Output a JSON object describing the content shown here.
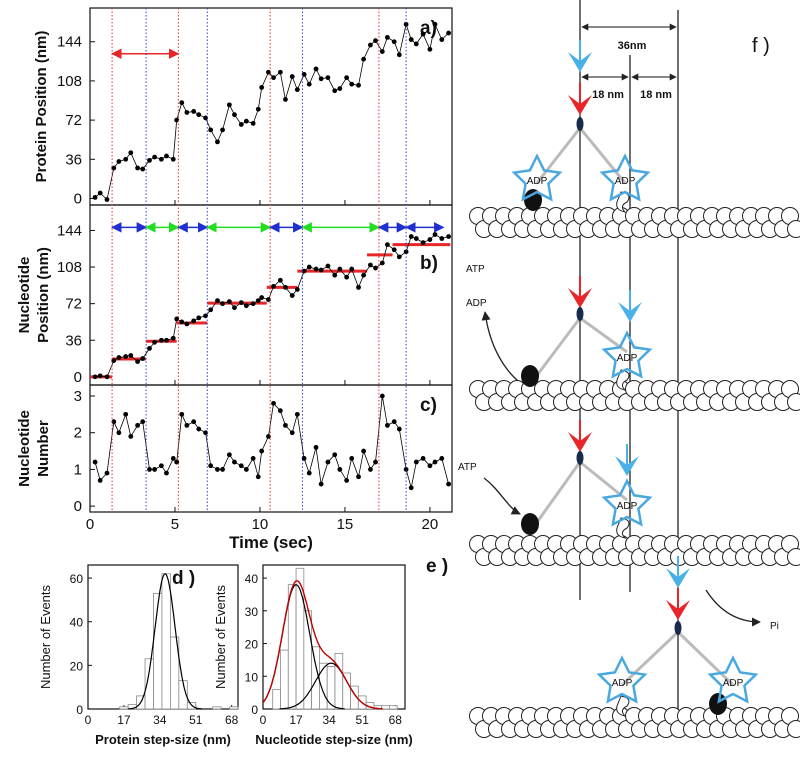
{
  "chart_data": [
    {
      "type": "line",
      "label": "a)",
      "ylabel": [
        "Protein Position (nm)"
      ],
      "color": "#000000",
      "x": [
        0.3,
        0.6,
        1.0,
        1.4,
        1.7,
        2.1,
        2.4,
        2.8,
        3.1,
        3.5,
        3.8,
        4.2,
        4.5,
        4.9,
        5.1,
        5.4,
        5.7,
        6.1,
        6.4,
        6.8,
        7.1,
        7.5,
        7.8,
        8.2,
        8.5,
        8.9,
        9.2,
        9.6,
        9.9,
        10.1,
        10.5,
        10.8,
        11.2,
        11.5,
        11.9,
        12.2,
        12.6,
        12.9,
        13.3,
        13.6,
        14.0,
        14.4,
        14.7,
        15.1,
        15.4,
        15.8,
        16.1,
        16.5,
        16.8,
        17.2,
        17.5,
        17.9,
        18.2,
        18.6,
        18.9,
        19.2,
        19.6,
        20.0,
        20.3,
        20.7,
        21.1
      ],
      "values": [
        1,
        5,
        -1,
        28,
        34,
        36,
        42,
        28,
        27,
        35,
        38,
        36,
        39,
        36,
        72,
        88,
        79,
        80,
        77,
        74,
        63,
        52,
        63,
        86,
        77,
        68,
        71,
        69,
        82,
        102,
        116,
        111,
        116,
        91,
        112,
        100,
        114,
        105,
        119,
        110,
        111,
        99,
        101,
        111,
        105,
        104,
        128,
        141,
        145,
        135,
        148,
        144,
        132,
        160,
        146,
        142,
        151,
        137,
        160,
        146,
        152
      ],
      "xlim": [
        0,
        21.3
      ],
      "ylim": [
        -6,
        175
      ],
      "yticks": [
        0,
        36,
        72,
        108,
        144
      ],
      "event_lines": [
        {
          "x": 1.3,
          "color": "#e03030"
        },
        {
          "x": 3.3,
          "color": "#3040d0"
        },
        {
          "x": 5.2,
          "color": "#e03030"
        },
        {
          "x": 6.9,
          "color": "#3040d0"
        },
        {
          "x": 10.6,
          "color": "#e03030"
        },
        {
          "x": 12.5,
          "color": "#3040d0"
        },
        {
          "x": 17.0,
          "color": "#e03030"
        },
        {
          "x": 18.6,
          "color": "#3040d0"
        }
      ],
      "arrows": [
        {
          "from": 1.3,
          "to": 5.2,
          "y": 133,
          "color": "#e8262a"
        }
      ]
    },
    {
      "type": "line",
      "label": "b)",
      "ylabel": [
        "Nucleotide",
        "Position (nm)"
      ],
      "color": "#000000",
      "x": [
        0.3,
        0.6,
        1.0,
        1.4,
        1.7,
        2.1,
        2.4,
        2.8,
        3.1,
        3.5,
        3.8,
        4.2,
        4.5,
        4.9,
        5.1,
        5.4,
        5.7,
        6.1,
        6.4,
        6.8,
        7.1,
        7.5,
        7.8,
        8.2,
        8.5,
        8.9,
        9.2,
        9.6,
        9.9,
        10.1,
        10.5,
        10.8,
        11.2,
        11.5,
        11.9,
        12.2,
        12.6,
        12.9,
        13.3,
        13.6,
        14.0,
        14.4,
        14.7,
        15.1,
        15.4,
        15.8,
        16.1,
        16.5,
        16.8,
        17.2,
        17.5,
        17.9,
        18.2,
        18.6,
        18.9,
        19.2,
        19.6,
        20.0,
        20.3,
        20.7,
        21.1
      ],
      "values": [
        0,
        1,
        0,
        16,
        19,
        20,
        21,
        15,
        18,
        28,
        34,
        36,
        36,
        38,
        57,
        54,
        52,
        55,
        58,
        60,
        66,
        75,
        72,
        74,
        68,
        73,
        70,
        72,
        75,
        78,
        76,
        89,
        95,
        88,
        80,
        86,
        104,
        108,
        106,
        105,
        109,
        100,
        106,
        98,
        106,
        88,
        100,
        110,
        107,
        112,
        130,
        125,
        118,
        123,
        138,
        136,
        132,
        135,
        140,
        136,
        138
      ],
      "steps": [
        {
          "from": 0,
          "to": 1.3,
          "value": 0
        },
        {
          "from": 1.3,
          "to": 3.3,
          "value": 17.6
        },
        {
          "from": 3.3,
          "to": 5.1,
          "value": 35
        },
        {
          "from": 5.1,
          "to": 6.9,
          "value": 53
        },
        {
          "from": 6.9,
          "to": 10.4,
          "value": 72.5
        },
        {
          "from": 10.4,
          "to": 12.2,
          "value": 88
        },
        {
          "from": 12.2,
          "to": 16.3,
          "value": 104
        },
        {
          "from": 16.3,
          "to": 17.8,
          "value": 120
        },
        {
          "from": 17.8,
          "to": 21.2,
          "value": 130
        }
      ],
      "step_color": "#e8262a",
      "dwell_arrows": [
        {
          "from": 1.3,
          "to": 3.3,
          "color": "#2030d0"
        },
        {
          "from": 3.3,
          "to": 5.2,
          "color": "#22dd22"
        },
        {
          "from": 5.2,
          "to": 6.9,
          "color": "#2030d0"
        },
        {
          "from": 6.9,
          "to": 10.6,
          "color": "#22dd22"
        },
        {
          "from": 10.6,
          "to": 12.5,
          "color": "#2030d0"
        },
        {
          "from": 12.5,
          "to": 17.0,
          "color": "#22dd22"
        },
        {
          "from": 17.0,
          "to": 18.6,
          "color": "#2030d0"
        },
        {
          "from": 18.6,
          "to": 20.8,
          "color": "#2030d0"
        }
      ],
      "arrow_y": 147,
      "xlim": [
        0,
        21.3
      ],
      "ylim": [
        -8,
        169
      ],
      "yticks": [
        0,
        36,
        72,
        108,
        144
      ]
    },
    {
      "type": "line",
      "label": "c)",
      "ylabel": [
        "Nucleotide",
        "Number"
      ],
      "xlabel": "Time (sec)",
      "color": "#000000",
      "x": [
        0.3,
        0.6,
        1.0,
        1.4,
        1.7,
        2.1,
        2.4,
        2.8,
        3.1,
        3.5,
        3.8,
        4.2,
        4.5,
        4.9,
        5.1,
        5.4,
        5.7,
        6.1,
        6.4,
        6.8,
        7.1,
        7.5,
        7.8,
        8.2,
        8.5,
        8.9,
        9.2,
        9.6,
        9.9,
        10.1,
        10.5,
        10.8,
        11.2,
        11.5,
        11.9,
        12.2,
        12.6,
        12.9,
        13.3,
        13.6,
        14.0,
        14.4,
        14.7,
        15.1,
        15.4,
        15.8,
        16.1,
        16.5,
        16.8,
        17.2,
        17.5,
        17.9,
        18.2,
        18.6,
        18.9,
        19.2,
        19.6,
        20.0,
        20.3,
        20.7,
        21.1
      ],
      "values": [
        1.2,
        0.7,
        0.9,
        2.3,
        2.0,
        2.5,
        1.9,
        2.2,
        2.3,
        1.0,
        1.0,
        1.1,
        0.9,
        1.3,
        1.2,
        2.5,
        2.2,
        2.3,
        2.1,
        2.0,
        1.1,
        1.0,
        1.0,
        1.4,
        1.2,
        1.1,
        1.0,
        1.3,
        0.8,
        1.5,
        1.9,
        2.8,
        2.6,
        2.2,
        2.0,
        2.5,
        1.3,
        0.9,
        1.6,
        0.6,
        1.2,
        1.4,
        1.0,
        0.7,
        1.3,
        0.8,
        1.5,
        1.0,
        1.2,
        3.0,
        2.2,
        2.3,
        2.1,
        1.0,
        0.5,
        1.2,
        1.3,
        1.1,
        1.2,
        1.3,
        0.6
      ],
      "xlim": [
        0,
        21.3
      ],
      "xticks": [
        0,
        5,
        10,
        15,
        20
      ],
      "ylim": [
        -0.16,
        3.3
      ],
      "yticks": [
        0,
        1,
        2,
        3
      ]
    },
    {
      "type": "histogram",
      "label": "d )",
      "xlabel": "Protein step-size (nm)",
      "ylabel": "Number of Events",
      "bins": [
        15,
        19,
        23,
        27,
        31,
        35,
        39,
        43,
        47,
        51,
        55,
        59,
        63,
        67,
        71
      ],
      "counts": [
        1,
        2,
        6,
        23,
        53,
        62,
        33,
        13,
        3,
        0,
        0,
        1,
        0,
        1
      ],
      "xlim": [
        0,
        71
      ],
      "xticks": [
        0,
        17,
        34,
        51,
        68
      ],
      "ylim": [
        0,
        66
      ],
      "yticks": [
        0,
        20,
        40,
        60
      ],
      "fit_curves": [
        {
          "mean": 36.5,
          "sd": 4.7,
          "amplitude": 62,
          "color": "#000000"
        }
      ]
    },
    {
      "type": "histogram",
      "label": "e )",
      "xlabel": "Nucleotide step-size (nm)",
      "ylabel": "Number of Events",
      "bins": [
        5,
        9,
        13,
        17,
        21,
        25,
        29,
        33,
        37,
        41,
        45,
        49,
        53,
        57,
        61,
        65,
        69
      ],
      "counts": [
        6,
        18,
        38,
        43,
        30,
        19,
        14,
        13,
        17,
        11,
        7,
        4,
        2,
        1,
        1,
        1
      ],
      "xlim": [
        0,
        73
      ],
      "xticks": [
        0,
        17,
        34,
        51,
        68
      ],
      "ylim": [
        0,
        44
      ],
      "yticks": [
        0,
        10,
        20,
        30,
        40
      ],
      "fit_curves": [
        {
          "mean": 17,
          "sd": 7,
          "amplitude": 38,
          "color": "#000000"
        },
        {
          "mean": 35,
          "sd": 8,
          "amplitude": 14,
          "color": "#000000"
        }
      ],
      "fit_sum_color": "#c00000"
    }
  ],
  "diagram": {
    "label": "f )",
    "dimension": "36nm",
    "half_dimensions": [
      "18 nm",
      "18 nm"
    ],
    "labels": [
      "ATP",
      "ADP",
      "ATP",
      "Pi"
    ],
    "star_labels": [
      "ADP",
      "ADP",
      "ADP",
      "ADP",
      "ADP",
      "ADP"
    ]
  }
}
